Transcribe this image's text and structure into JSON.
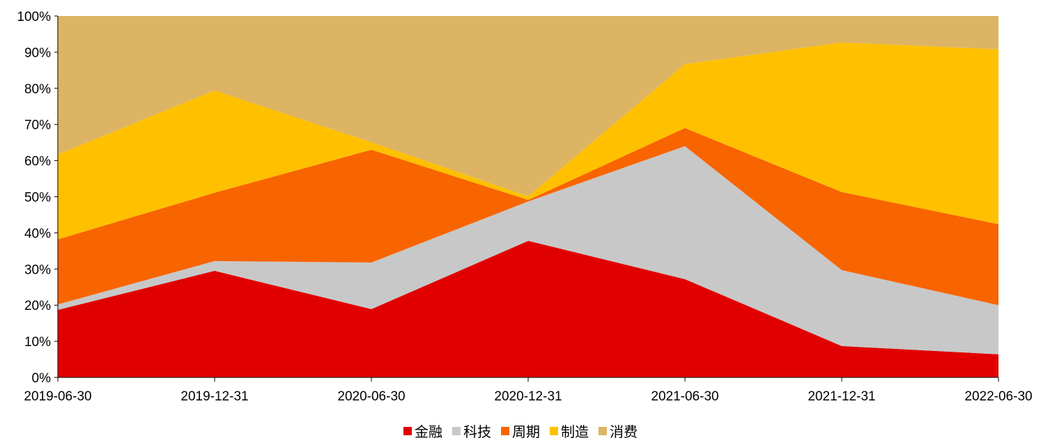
{
  "chart_data": {
    "type": "area",
    "stacked": true,
    "percent": true,
    "x": [
      "2019-06-30",
      "2019-12-31",
      "2020-06-30",
      "2020-12-31",
      "2021-06-30",
      "2021-12-31",
      "2022-06-30"
    ],
    "yticks": [
      "0%",
      "10%",
      "20%",
      "30%",
      "40%",
      "50%",
      "60%",
      "70%",
      "80%",
      "90%",
      "100%"
    ],
    "ylim": [
      0,
      100
    ],
    "grid": false,
    "legend_position": "bottom",
    "series": [
      {
        "name": "金融",
        "color": "#E00000",
        "values": [
          18.7,
          29.5,
          18.9,
          37.8,
          27.2,
          8.7,
          6.4
        ]
      },
      {
        "name": "科技",
        "color": "#C8C8C8",
        "values": [
          1.5,
          2.7,
          12.9,
          10.9,
          36.8,
          21.0,
          13.6
        ]
      },
      {
        "name": "周期",
        "color": "#F86400",
        "values": [
          18.0,
          18.9,
          31.2,
          0.4,
          5.0,
          21.6,
          22.4
        ]
      },
      {
        "name": "制造",
        "color": "#FFC000",
        "values": [
          23.5,
          28.3,
          2.1,
          1.0,
          17.7,
          41.4,
          48.4
        ]
      },
      {
        "name": "消费",
        "color": "#DCB464",
        "values": [
          38.3,
          20.6,
          34.9,
          49.9,
          13.3,
          7.3,
          9.2
        ]
      }
    ]
  }
}
